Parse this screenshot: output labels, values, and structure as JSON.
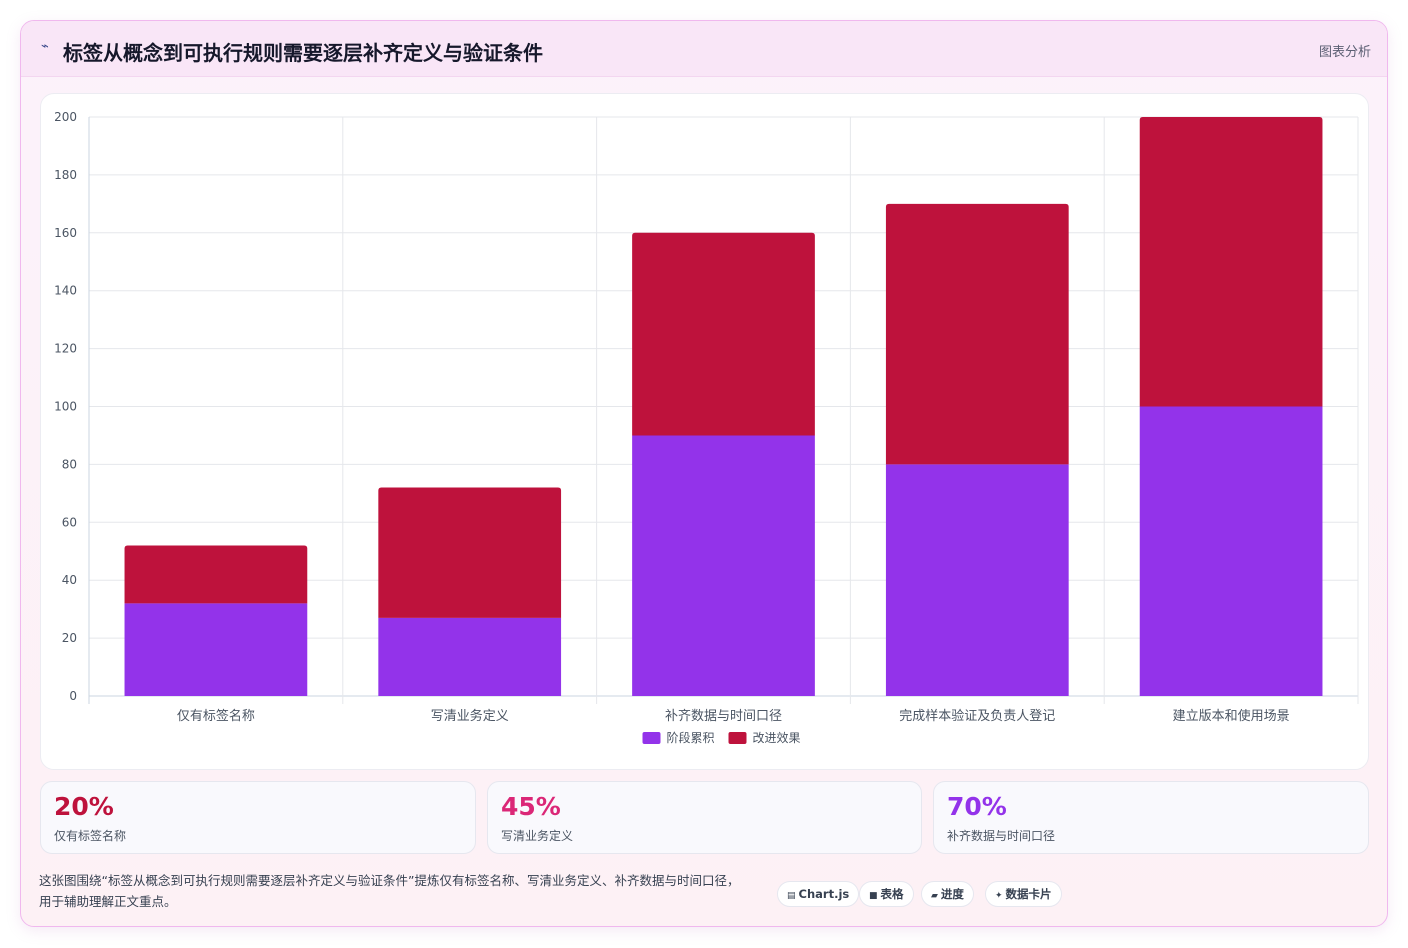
{
  "header": {
    "icon": "chart-line-icon",
    "title": "标签从概念到可执行规则需要逐层补齐定义与验证条件",
    "tag": "图表分析"
  },
  "chart_data": {
    "type": "bar",
    "stacked": true,
    "categories": [
      "仅有标签名称",
      "写清业务定义",
      "补齐数据与时间口径",
      "完成样本验证及负责人登记",
      "建立版本和使用场景"
    ],
    "series": [
      {
        "name": "阶段累积",
        "color": "#9333ea",
        "values": [
          32,
          27,
          90,
          80,
          100
        ]
      },
      {
        "name": "改进效果",
        "color": "#be123c",
        "values": [
          20,
          45,
          70,
          90,
          100
        ]
      }
    ],
    "y_ticks": [
      "0",
      "20",
      "40",
      "60",
      "80",
      "100",
      "120",
      "140",
      "160",
      "180",
      "200"
    ],
    "ylim": [
      0,
      200
    ],
    "grid": true,
    "legend_position": "bottom"
  },
  "stats": [
    {
      "value": "20%",
      "label": "仅有标签名称",
      "color": "#be123c"
    },
    {
      "value": "45%",
      "label": "写清业务定义",
      "color": "#db2777"
    },
    {
      "value": "70%",
      "label": "补齐数据与时间口径",
      "color": "#9333ea"
    }
  ],
  "caption": "这张图围绕“标签从概念到可执行规则需要逐层补齐定义与验证条件”提炼仅有标签名称、写清业务定义、补齐数据与时间口径，用于辅助理解正文重点。",
  "chips": [
    {
      "icon": "chart-icon",
      "glyph": "▤",
      "label": "Chart.js"
    },
    {
      "icon": "table-icon",
      "glyph": "■",
      "label": "表格"
    },
    {
      "icon": "progress-icon",
      "glyph": "▰",
      "label": "进度"
    },
    {
      "icon": "sparkle-icon",
      "glyph": "✦",
      "label": "数据卡片"
    }
  ]
}
